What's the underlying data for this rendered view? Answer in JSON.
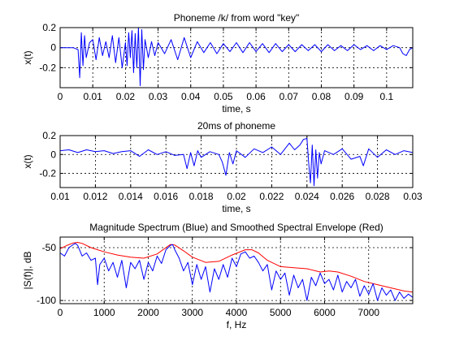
{
  "chart_data": [
    {
      "type": "line",
      "title": "Phoneme /k/ from word \"key\"",
      "xlabel": "time, s",
      "ylabel": "x(t)",
      "xlim": [
        0,
        0.108
      ],
      "ylim": [
        -0.4,
        0.2
      ],
      "xticks": [
        "0",
        "0.01",
        "0.02",
        "0.03",
        "0.04",
        "0.05",
        "0.06",
        "0.07",
        "0.08",
        "0.09",
        "0.1"
      ],
      "yticks": [
        "0.2",
        "0",
        "-0.2"
      ],
      "grid": true,
      "series": [
        {
          "color": "#0000ff",
          "x": [
            0.0,
            0.004,
            0.0055,
            0.006,
            0.0065,
            0.007,
            0.0075,
            0.008,
            0.009,
            0.01,
            0.011,
            0.012,
            0.013,
            0.014,
            0.015,
            0.016,
            0.017,
            0.018,
            0.019,
            0.02,
            0.0205,
            0.021,
            0.0215,
            0.022,
            0.0225,
            0.023,
            0.0235,
            0.024,
            0.0245,
            0.025,
            0.0255,
            0.026,
            0.027,
            0.028,
            0.029,
            0.03,
            0.032,
            0.034,
            0.036,
            0.038,
            0.04,
            0.042,
            0.044,
            0.046,
            0.048,
            0.05,
            0.052,
            0.054,
            0.056,
            0.058,
            0.06,
            0.062,
            0.064,
            0.066,
            0.068,
            0.07,
            0.072,
            0.074,
            0.076,
            0.078,
            0.08,
            0.082,
            0.084,
            0.086,
            0.088,
            0.09,
            0.092,
            0.094,
            0.096,
            0.098,
            0.1,
            0.102,
            0.104,
            0.105,
            0.106,
            0.107,
            0.108
          ],
          "y": [
            0,
            0,
            -0.02,
            -0.3,
            0.15,
            -0.18,
            0.12,
            -0.1,
            0.05,
            0.08,
            -0.12,
            0.1,
            -0.08,
            0.06,
            -0.1,
            0.12,
            -0.15,
            0.1,
            -0.2,
            0.05,
            -0.18,
            0.15,
            -0.1,
            0.17,
            -0.25,
            0.14,
            -0.2,
            0.2,
            -0.38,
            0.18,
            -0.22,
            0.08,
            -0.1,
            0.06,
            -0.08,
            0.05,
            -0.06,
            0.08,
            -0.12,
            0.1,
            -0.1,
            0.06,
            -0.05,
            0.05,
            -0.06,
            0.04,
            -0.04,
            0.05,
            -0.05,
            0.05,
            -0.04,
            0.04,
            -0.05,
            0.04,
            -0.04,
            0.03,
            -0.04,
            0.03,
            -0.03,
            0.03,
            -0.04,
            0.03,
            -0.03,
            0.02,
            -0.03,
            0.03,
            -0.02,
            0.02,
            -0.03,
            0.02,
            -0.02,
            0.02,
            0.0,
            -0.06,
            -0.08,
            -0.02,
            0.0
          ]
        }
      ]
    },
    {
      "type": "line",
      "title": "20ms of phoneme",
      "xlabel": "time, s",
      "ylabel": "x(t)",
      "xlim": [
        0.01,
        0.03
      ],
      "ylim": [
        -0.35,
        0.2
      ],
      "xticks": [
        "0.01",
        "0.012",
        "0.014",
        "0.016",
        "0.018",
        "0.02",
        "0.022",
        "0.024",
        "0.026",
        "0.028",
        "0.03"
      ],
      "yticks": [
        "0.2",
        "0",
        "-0.2"
      ],
      "grid": true,
      "series": [
        {
          "color": "#0000ff",
          "x": [
            0.01,
            0.0105,
            0.011,
            0.0115,
            0.012,
            0.0125,
            0.013,
            0.0135,
            0.014,
            0.0145,
            0.015,
            0.0155,
            0.016,
            0.0165,
            0.017,
            0.0172,
            0.0174,
            0.0176,
            0.0178,
            0.018,
            0.0185,
            0.019,
            0.0192,
            0.0194,
            0.0196,
            0.0198,
            0.02,
            0.0205,
            0.021,
            0.0215,
            0.022,
            0.0225,
            0.023,
            0.0233,
            0.0236,
            0.0238,
            0.024,
            0.0241,
            0.0242,
            0.0243,
            0.0244,
            0.0245,
            0.0246,
            0.0247,
            0.0248,
            0.025,
            0.0255,
            0.026,
            0.0265,
            0.027,
            0.0272,
            0.0275,
            0.028,
            0.0285,
            0.029,
            0.0295,
            0.03
          ],
          "y": [
            0.04,
            0.05,
            0.02,
            0.05,
            0.03,
            0.04,
            0.01,
            0.03,
            0.04,
            -0.02,
            0.05,
            0.0,
            0.03,
            -0.01,
            0.0,
            -0.15,
            0.02,
            -0.12,
            0.04,
            -0.03,
            0.03,
            0.0,
            -0.08,
            -0.22,
            0.02,
            -0.1,
            0.04,
            -0.03,
            0.06,
            0.02,
            0.08,
            0.0,
            0.12,
            0.05,
            0.1,
            0.16,
            0.17,
            -0.1,
            -0.3,
            0.1,
            -0.33,
            0.05,
            -0.25,
            0.02,
            -0.1,
            0.04,
            0.0,
            0.06,
            -0.05,
            -0.02,
            -0.12,
            0.06,
            -0.03,
            0.05,
            0.0,
            0.04,
            0.02
          ]
        }
      ]
    },
    {
      "type": "line",
      "title": "Magnitude Spectrum (Blue) and Smoothed Spectral Envelope (Red)",
      "xlabel": "f, Hz",
      "ylabel": "|S(f)|, dB",
      "xlim": [
        0,
        8000
      ],
      "ylim": [
        -103,
        -40
      ],
      "xticks": [
        "0",
        "1000",
        "2000",
        "3000",
        "4000",
        "5000",
        "6000",
        "7000"
      ],
      "yticks": [
        "-50",
        "-100"
      ],
      "grid": true,
      "series": [
        {
          "color": "#ff0000",
          "x": [
            0,
            150,
            300,
            400,
            500,
            700,
            1000,
            1300,
            1600,
            1900,
            2200,
            2400,
            2500,
            2600,
            2800,
            3000,
            3300,
            3600,
            3900,
            4200,
            4350,
            4500,
            4700,
            5000,
            5300,
            5600,
            5900,
            6100,
            6300,
            6600,
            6900,
            7200,
            7500,
            7800,
            8000
          ],
          "y": [
            -51,
            -48,
            -45.5,
            -45,
            -46,
            -50,
            -54,
            -57,
            -59,
            -60,
            -56,
            -50,
            -47,
            -47.5,
            -53,
            -59,
            -64,
            -63,
            -57,
            -52,
            -52,
            -55,
            -62,
            -68,
            -69,
            -70,
            -73,
            -72,
            -73,
            -77,
            -82,
            -85,
            -88,
            -91,
            -92
          ]
        },
        {
          "color": "#0000ff",
          "x": [
            0,
            100,
            200,
            300,
            350,
            400,
            500,
            600,
            700,
            800,
            850,
            900,
            1000,
            1100,
            1200,
            1300,
            1400,
            1500,
            1600,
            1700,
            1800,
            1900,
            2000,
            2100,
            2200,
            2300,
            2400,
            2500,
            2550,
            2600,
            2700,
            2800,
            2900,
            3000,
            3100,
            3200,
            3300,
            3400,
            3500,
            3600,
            3700,
            3800,
            3900,
            4000,
            4100,
            4200,
            4300,
            4400,
            4500,
            4600,
            4700,
            4800,
            4900,
            5000,
            5100,
            5200,
            5300,
            5400,
            5500,
            5600,
            5700,
            5800,
            5900,
            6000,
            6100,
            6200,
            6300,
            6400,
            6500,
            6600,
            6700,
            6800,
            6900,
            7000,
            7100,
            7200,
            7300,
            7400,
            7500,
            7600,
            7700,
            7800,
            7900,
            8000
          ],
          "y": [
            -55,
            -58,
            -50,
            -47,
            -46,
            -48,
            -58,
            -55,
            -62,
            -60,
            -85,
            -66,
            -60,
            -72,
            -64,
            -78,
            -62,
            -88,
            -64,
            -70,
            -62,
            -80,
            -64,
            -72,
            -58,
            -65,
            -52,
            -48,
            -47,
            -52,
            -60,
            -72,
            -64,
            -85,
            -66,
            -80,
            -68,
            -92,
            -70,
            -80,
            -66,
            -78,
            -60,
            -68,
            -56,
            -54,
            -60,
            -58,
            -64,
            -72,
            -66,
            -90,
            -72,
            -80,
            -74,
            -95,
            -76,
            -88,
            -80,
            -100,
            -78,
            -86,
            -74,
            -84,
            -80,
            -90,
            -76,
            -92,
            -82,
            -88,
            -80,
            -96,
            -86,
            -94,
            -84,
            -100,
            -88,
            -95,
            -90,
            -100,
            -92,
            -98,
            -94,
            -97
          ]
        }
      ]
    }
  ]
}
